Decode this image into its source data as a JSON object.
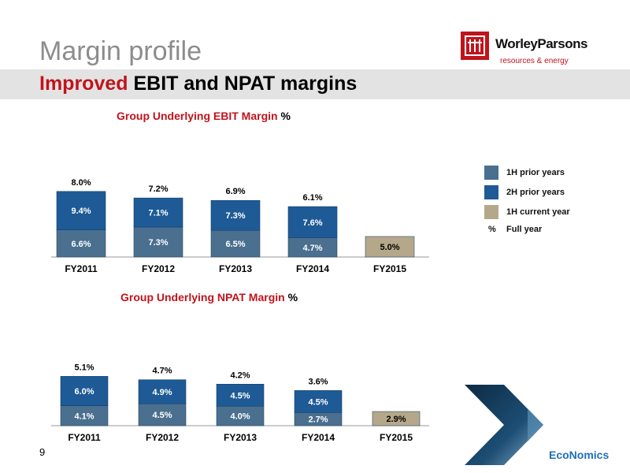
{
  "header": {
    "title": "Margin profile",
    "subtitle_accent": "Improved",
    "subtitle_rest": " EBIT and NPAT margins"
  },
  "logo": {
    "name": "WorleyParsons",
    "tagline": "resources & energy"
  },
  "colors": {
    "first_half": "#4a6f8f",
    "second_half": "#1e5a96",
    "current_year": "#b5a88a",
    "title_red": "#c0141c"
  },
  "legend": {
    "items": [
      {
        "label": "1H prior years",
        "color": "#4a6f8f"
      },
      {
        "label": "2H prior years",
        "color": "#1e5a96"
      },
      {
        "label": "1H current year",
        "color": "#b5a88a"
      }
    ],
    "full_year_symbol": "%",
    "full_year_label": "Full year"
  },
  "chart_data": [
    {
      "type": "bar",
      "stacked": true,
      "title": "Group Underlying EBIT Margin",
      "title_unit": "%",
      "categories": [
        "FY2011",
        "FY2012",
        "FY2013",
        "FY2014",
        "FY2015"
      ],
      "series": [
        {
          "name": "1H",
          "values": [
            6.6,
            7.3,
            6.5,
            4.7,
            5.0
          ],
          "labels": [
            "6.6%",
            "7.3%",
            "6.5%",
            "4.7%",
            "5.0%"
          ]
        },
        {
          "name": "2H",
          "values": [
            9.4,
            7.1,
            7.3,
            7.6,
            null
          ],
          "labels": [
            "9.4%",
            "7.1%",
            "7.3%",
            "7.6%",
            ""
          ]
        }
      ],
      "full_year": [
        "8.0%",
        "7.2%",
        "6.9%",
        "6.1%",
        ""
      ],
      "current_year_index": 4,
      "grid": false
    },
    {
      "type": "bar",
      "stacked": true,
      "title": "Group Underlying NPAT Margin",
      "title_unit": "%",
      "categories": [
        "FY2011",
        "FY2012",
        "FY2013",
        "FY2014",
        "FY2015"
      ],
      "series": [
        {
          "name": "1H",
          "values": [
            4.1,
            4.5,
            4.0,
            2.7,
            2.9
          ],
          "labels": [
            "4.1%",
            "4.5%",
            "4.0%",
            "2.7%",
            "2.9%"
          ]
        },
        {
          "name": "2H",
          "values": [
            6.0,
            4.9,
            4.5,
            4.5,
            null
          ],
          "labels": [
            "6.0%",
            "4.9%",
            "4.5%",
            "4.5%",
            ""
          ]
        }
      ],
      "full_year": [
        "5.1%",
        "4.7%",
        "4.2%",
        "3.6%",
        ""
      ],
      "current_year_index": 4,
      "grid": false
    }
  ],
  "footer": {
    "page_number": "9",
    "brand": "EcoNomics"
  }
}
